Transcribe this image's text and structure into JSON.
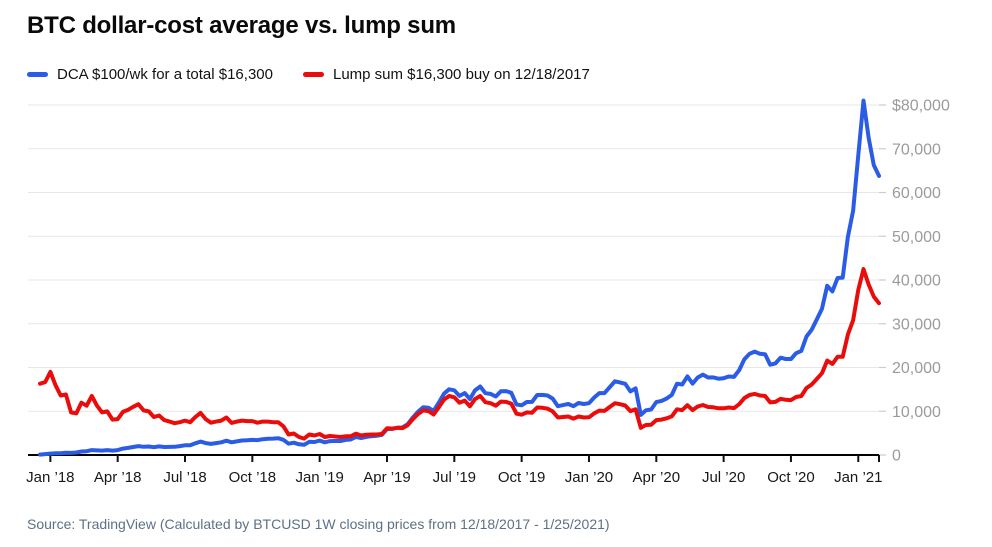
{
  "title": "BTC dollar-cost average vs. lump sum",
  "legend": [
    {
      "id": "dca",
      "label": "DCA $100/wk for a total $16,300",
      "color": "#2b5ce6"
    },
    {
      "id": "lump",
      "label": "Lump sum $16,300 buy on 12/18/2017",
      "color": "#ea0b0b"
    }
  ],
  "source": "Source: TradingView (Calculated by BTCUSD 1W closing prices from 12/18/2017 - 1/25/2021)",
  "chart_data": {
    "type": "line",
    "title": "BTC dollar-cost average vs. lump sum",
    "x_unit": "weeks (BTCUSD 1W closes)",
    "x_start": "12/18/2017",
    "x_end": "1/25/2021",
    "grid": "horizontal",
    "legend_position": "top",
    "y_axis": {
      "min": 0,
      "max": 80000,
      "ticks": [
        {
          "value": 80000,
          "label": "$80,000"
        },
        {
          "value": 70000,
          "label": "70,000"
        },
        {
          "value": 60000,
          "label": "60,000"
        },
        {
          "value": 50000,
          "label": "50,000"
        },
        {
          "value": 40000,
          "label": "40,000"
        },
        {
          "value": 30000,
          "label": "30,000"
        },
        {
          "value": 20000,
          "label": "20,000"
        },
        {
          "value": 10000,
          "label": "10,000"
        },
        {
          "value": 0,
          "label": "0"
        }
      ]
    },
    "x_axis": {
      "ticks": [
        {
          "week": 2,
          "label": "Jan ’18"
        },
        {
          "week": 15,
          "label": "Apr ’18"
        },
        {
          "week": 28,
          "label": "Jul ’18"
        },
        {
          "week": 41,
          "label": "Oct ’18"
        },
        {
          "week": 54,
          "label": "Jan ’19"
        },
        {
          "week": 67,
          "label": "Apr ’19"
        },
        {
          "week": 80,
          "label": "Jul ’19"
        },
        {
          "week": 93,
          "label": "Oct ’19"
        },
        {
          "week": 106,
          "label": "Jan ’20"
        },
        {
          "week": 119,
          "label": "Apr ’20"
        },
        {
          "week": 132,
          "label": "Jul ’20"
        },
        {
          "week": 145,
          "label": "Oct ’20"
        },
        {
          "week": 158,
          "label": "Jan ’21"
        }
      ]
    },
    "series": [
      {
        "id": "dca",
        "name": "DCA $100/wk for a total $16,300",
        "color": "#2b5ce6",
        "values": [
          100,
          202,
          331,
          378,
          422,
          529,
          472,
          561,
          806,
          859,
          1129,
          1042,
          1001,
          1125,
          1013,
          1128,
          1454,
          1623,
          1834,
          2031,
          1885,
          1942,
          1790,
          1963,
          1834,
          1853,
          1867,
          2027,
          2222,
          2223,
          2670,
          3059,
          2711,
          2540,
          2721,
          2905,
          3265,
          2895,
          3111,
          3307,
          3357,
          3457,
          3400,
          3608,
          3708,
          3751,
          3851,
          3470,
          2578,
          2807,
          2439,
          2330,
          3013,
          2962,
          3296,
          2914,
          3180,
          3194,
          3206,
          3443,
          3543,
          4128,
          3880,
          4133,
          4286,
          4386,
          4595,
          5928,
          5971,
          6245,
          6286,
          7045,
          8602,
          9931,
          10900,
          10812,
          10090,
          11978,
          14010,
          15018,
          14792,
          13511,
          14141,
          12773,
          14756,
          15668,
          14133,
          13959,
          13368,
          14582,
          14612,
          14217,
          11545,
          11358,
          12109,
          12136,
          13708,
          13733,
          13610,
          12882,
          11164,
          11417,
          11671,
          11148,
          11877,
          11660,
          11840,
          13148,
          14141,
          14159,
          15494,
          16836,
          16603,
          16284,
          14528,
          15222,
          9165,
          10216,
          10403,
          12090,
          12368,
          12916,
          13739,
          16295,
          16121,
          17971,
          16311,
          17716,
          18378,
          17724,
          17730,
          17448,
          17548,
          17938,
          17844,
          19406,
          21858,
          23140,
          23636,
          23140,
          23040,
          20636,
          20937,
          22251,
          21944,
          21942,
          23273,
          23785,
          27091,
          28644,
          31035,
          33434,
          38670,
          37404,
          40454,
          40554,
          49866,
          55801,
          68549,
          80996,
          72571,
          66267,
          63802
        ]
      },
      {
        "id": "lump",
        "name": "Lump sum $16,300 buy on 12/18/2017",
        "color": "#ea0b0b",
        "values": [
          16300,
          16652,
          18998,
          15949,
          13603,
          13838,
          9733,
          9499,
          11962,
          11258,
          13486,
          11258,
          9733,
          9968,
          8092,
          8209,
          9851,
          10320,
          11023,
          11610,
          10202,
          9968,
          8678,
          9030,
          7974,
          7623,
          7271,
          7505,
          7857,
          7505,
          8678,
          9616,
          8209,
          7388,
          7623,
          7857,
          8561,
          7329,
          7623,
          7857,
          7740,
          7740,
          7388,
          7623,
          7623,
          7505,
          7505,
          6567,
          4691,
          4925,
          4104,
          3753,
          4691,
          4456,
          4808,
          4104,
          4339,
          4222,
          4104,
          4280,
          4280,
          4867,
          4456,
          4632,
          4691,
          4691,
          4808,
          6098,
          6039,
          6215,
          6157,
          6802,
          8209,
          9382,
          10202,
          10026,
          9264,
          10906,
          12665,
          13486,
          13193,
          11962,
          12431,
          11140,
          12782,
          13486,
          12079,
          11844,
          11258,
          12196,
          12137,
          11727,
          9440,
          9206,
          9733,
          9675,
          10847,
          10789,
          10613,
          9968,
          8561,
          8678,
          8795,
          8326,
          8795,
          8561,
          8619,
          9499,
          10144,
          10085,
          10965,
          11844,
          11610,
          11317,
          10026,
          10437,
          6215,
          6860,
          6919,
          7974,
          8092,
          8385,
          8854,
          10437,
          10261,
          11375,
          10261,
          11082,
          11434,
          10965,
          10906,
          10672,
          10672,
          10847,
          10730,
          11610,
          13017,
          13721,
          13955,
          13603,
          13486,
          12020,
          12137,
          12841,
          12606,
          12548,
          13251,
          13486,
          15304,
          16125,
          17415,
          18705,
          21578,
          20815,
          22457,
          22457,
          27558,
          30783,
          37761,
          42500,
          39000,
          36200,
          34700
        ]
      }
    ]
  }
}
